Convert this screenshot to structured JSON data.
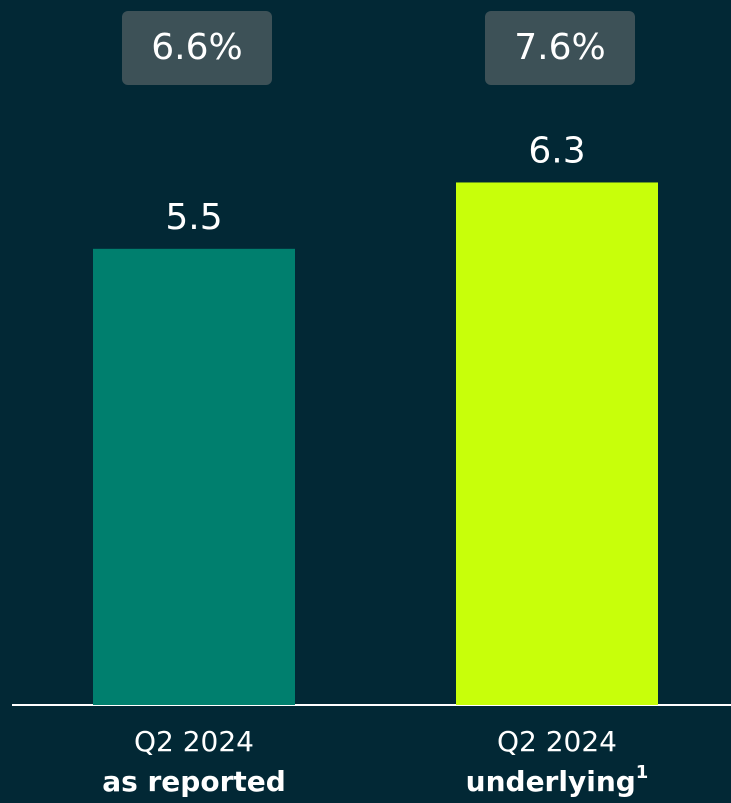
{
  "chart_data": {
    "type": "bar",
    "categories": [
      {
        "period": "Q2 2024",
        "basis": "as reported"
      },
      {
        "period": "Q2 2024",
        "basis": "underlying",
        "footnote": "1"
      }
    ],
    "values": [
      5.5,
      6.3
    ],
    "colors": [
      "#007f6e",
      "#c8ff0a"
    ],
    "annotations": [
      "6.6%",
      "7.6%"
    ],
    "ylim": [
      0,
      8.5
    ]
  }
}
